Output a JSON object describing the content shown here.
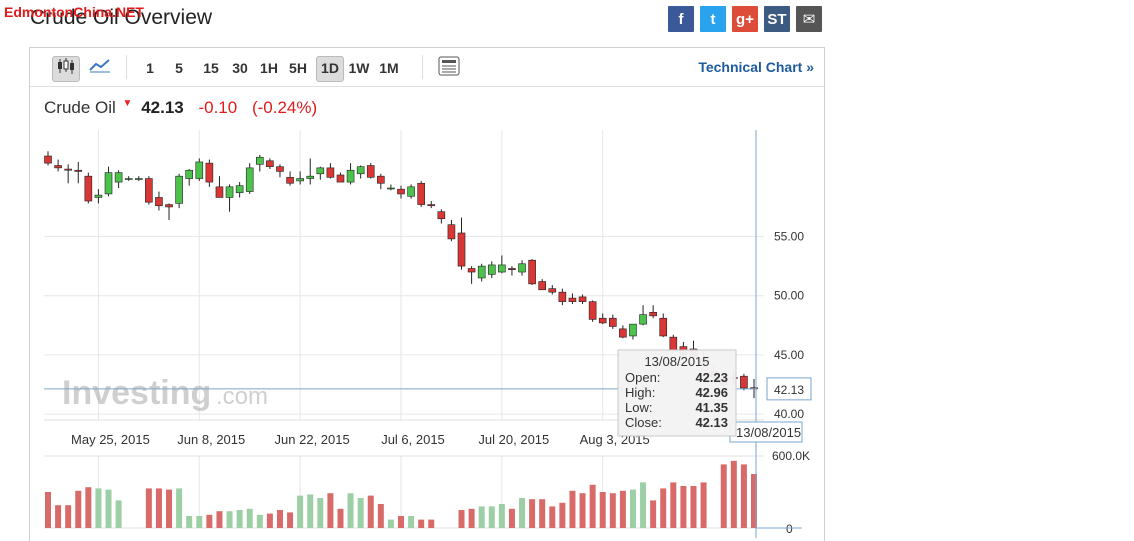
{
  "watermark": "EdmontonChina.NET",
  "page_title": "Crude Oil Overview",
  "share": [
    {
      "icon": "facebook-icon",
      "glyph": "f",
      "color": "#3b5998"
    },
    {
      "icon": "twitter-icon",
      "glyph": "t",
      "color": "#2aa3ef"
    },
    {
      "icon": "google-plus-icon",
      "glyph": "g+",
      "color": "#dd4b39"
    },
    {
      "icon": "stocktwits-icon",
      "glyph": "ST",
      "color": "#3d5a80"
    },
    {
      "icon": "email-icon",
      "glyph": "✉",
      "color": "#555555"
    }
  ],
  "toolbar": {
    "timeframes": [
      "1",
      "5",
      "15",
      "30",
      "1H",
      "5H",
      "1D",
      "1W",
      "1M"
    ],
    "active_timeframe": "1D",
    "technical_chart_label": "Technical Chart »"
  },
  "quote": {
    "name": "Crude Oil",
    "price": "42.13",
    "change": "-0.10",
    "change_pct": "(-0.24%)"
  },
  "colors": {
    "up": "#4cc24c",
    "down": "#d93636",
    "up_volume": "#9dcfa6",
    "down_volume": "#d96a6a",
    "crosshair": "#7aa6cf"
  },
  "chart_data": {
    "type": "candlestick",
    "price_axis": {
      "ylim": [
        39.5,
        64
      ],
      "ticks": [
        "55.00",
        "50.00",
        "45.00",
        "40.00"
      ],
      "current_price_label": "42.13"
    },
    "x_tick_labels": [
      "May 25, 2015",
      "Jun 8, 2015",
      "Jun 22, 2015",
      "Jul 6, 2015",
      "Jul 20, 2015",
      "Aug 3, 2015"
    ],
    "candles": [
      {
        "o": 61.8,
        "h": 62.2,
        "l": 61.0,
        "c": 61.2
      },
      {
        "o": 61.0,
        "h": 61.5,
        "l": 60.5,
        "c": 60.8
      },
      {
        "o": 60.7,
        "h": 61.1,
        "l": 59.5,
        "c": 60.6
      },
      {
        "o": 60.6,
        "h": 61.3,
        "l": 59.5,
        "c": 60.5
      },
      {
        "o": 60.1,
        "h": 60.4,
        "l": 57.8,
        "c": 58.0
      },
      {
        "o": 58.3,
        "h": 59.0,
        "l": 57.8,
        "c": 58.5
      },
      {
        "o": 58.6,
        "h": 60.9,
        "l": 58.4,
        "c": 60.4
      },
      {
        "o": 59.6,
        "h": 60.6,
        "l": 59.1,
        "c": 60.4
      },
      {
        "o": 59.9,
        "h": 60.1,
        "l": 59.7,
        "c": 59.9
      },
      {
        "o": 59.9,
        "h": 60.1,
        "l": 59.7,
        "c": 59.9
      },
      {
        "o": 59.9,
        "h": 60.1,
        "l": 57.7,
        "c": 57.9
      },
      {
        "o": 58.3,
        "h": 58.8,
        "l": 57.2,
        "c": 57.6
      },
      {
        "o": 57.7,
        "h": 57.8,
        "l": 56.4,
        "c": 57.5
      },
      {
        "o": 57.8,
        "h": 60.3,
        "l": 57.4,
        "c": 60.1
      },
      {
        "o": 59.9,
        "h": 60.7,
        "l": 59.3,
        "c": 60.6
      },
      {
        "o": 59.9,
        "h": 61.6,
        "l": 59.7,
        "c": 61.3
      },
      {
        "o": 61.2,
        "h": 61.5,
        "l": 59.2,
        "c": 59.6
      },
      {
        "o": 59.2,
        "h": 60.1,
        "l": 58.3,
        "c": 58.3
      },
      {
        "o": 58.3,
        "h": 59.4,
        "l": 57.1,
        "c": 59.2
      },
      {
        "o": 58.7,
        "h": 59.6,
        "l": 58.3,
        "c": 59.3
      },
      {
        "o": 58.8,
        "h": 61.2,
        "l": 58.6,
        "c": 60.8
      },
      {
        "o": 61.1,
        "h": 61.9,
        "l": 60.5,
        "c": 61.7
      },
      {
        "o": 61.4,
        "h": 61.6,
        "l": 60.7,
        "c": 60.9
      },
      {
        "o": 60.9,
        "h": 61.1,
        "l": 60.0,
        "c": 60.5
      },
      {
        "o": 60.0,
        "h": 60.5,
        "l": 59.3,
        "c": 59.5
      },
      {
        "o": 59.7,
        "h": 60.5,
        "l": 59.4,
        "c": 59.9
      },
      {
        "o": 59.9,
        "h": 61.6,
        "l": 59.4,
        "c": 60.1
      },
      {
        "o": 60.3,
        "h": 60.9,
        "l": 59.8,
        "c": 60.8
      },
      {
        "o": 60.8,
        "h": 61.2,
        "l": 59.9,
        "c": 60.0
      },
      {
        "o": 60.2,
        "h": 60.4,
        "l": 59.6,
        "c": 59.6
      },
      {
        "o": 59.6,
        "h": 61.2,
        "l": 59.4,
        "c": 60.6
      },
      {
        "o": 60.3,
        "h": 61.0,
        "l": 59.9,
        "c": 60.9
      },
      {
        "o": 61.0,
        "h": 61.2,
        "l": 59.9,
        "c": 60.0
      },
      {
        "o": 60.1,
        "h": 60.3,
        "l": 59.0,
        "c": 59.5
      },
      {
        "o": 59.1,
        "h": 59.4,
        "l": 58.9,
        "c": 59.1
      },
      {
        "o": 59.0,
        "h": 59.3,
        "l": 58.2,
        "c": 58.6
      },
      {
        "o": 58.4,
        "h": 59.4,
        "l": 58.2,
        "c": 59.2
      },
      {
        "o": 59.5,
        "h": 59.7,
        "l": 57.5,
        "c": 57.7
      },
      {
        "o": 57.7,
        "h": 58.0,
        "l": 57.4,
        "c": 57.6
      },
      {
        "o": 57.1,
        "h": 57.3,
        "l": 56.1,
        "c": 56.5
      },
      {
        "o": 56.0,
        "h": 56.4,
        "l": 54.6,
        "c": 54.8
      },
      {
        "o": 55.3,
        "h": 56.6,
        "l": 52.2,
        "c": 52.5
      },
      {
        "o": 52.3,
        "h": 52.5,
        "l": 51.0,
        "c": 52.0
      },
      {
        "o": 51.5,
        "h": 52.7,
        "l": 51.2,
        "c": 52.5
      },
      {
        "o": 51.8,
        "h": 52.9,
        "l": 51.5,
        "c": 52.6
      },
      {
        "o": 52.0,
        "h": 53.4,
        "l": 51.9,
        "c": 52.6
      },
      {
        "o": 52.3,
        "h": 52.5,
        "l": 51.7,
        "c": 52.2
      },
      {
        "o": 52.0,
        "h": 53.0,
        "l": 51.7,
        "c": 52.7
      },
      {
        "o": 53.0,
        "h": 53.1,
        "l": 50.9,
        "c": 51.0
      },
      {
        "o": 51.2,
        "h": 51.4,
        "l": 50.5,
        "c": 50.5
      },
      {
        "o": 50.6,
        "h": 50.9,
        "l": 50.1,
        "c": 50.3
      },
      {
        "o": 50.3,
        "h": 50.6,
        "l": 49.2,
        "c": 49.5
      },
      {
        "o": 49.8,
        "h": 50.2,
        "l": 49.3,
        "c": 49.5
      },
      {
        "o": 49.9,
        "h": 50.1,
        "l": 49.3,
        "c": 49.5
      },
      {
        "o": 49.5,
        "h": 49.6,
        "l": 47.8,
        "c": 48.0
      },
      {
        "o": 48.1,
        "h": 48.5,
        "l": 47.6,
        "c": 47.7
      },
      {
        "o": 48.1,
        "h": 48.4,
        "l": 47.2,
        "c": 47.4
      },
      {
        "o": 47.2,
        "h": 47.5,
        "l": 46.4,
        "c": 46.5
      },
      {
        "o": 46.6,
        "h": 47.6,
        "l": 46.3,
        "c": 47.6
      },
      {
        "o": 47.6,
        "h": 49.2,
        "l": 47.5,
        "c": 48.4
      },
      {
        "o": 48.6,
        "h": 49.2,
        "l": 48.1,
        "c": 48.3
      },
      {
        "o": 48.1,
        "h": 48.5,
        "l": 46.5,
        "c": 46.6
      },
      {
        "o": 46.5,
        "h": 46.7,
        "l": 45.2,
        "c": 45.4
      },
      {
        "o": 45.7,
        "h": 46.1,
        "l": 44.8,
        "c": 45.0
      },
      {
        "o": 45.5,
        "h": 46.2,
        "l": 44.6,
        "c": 44.8
      },
      {
        "o": 44.8,
        "h": 45.3,
        "l": 43.9,
        "c": 44.1
      },
      {
        "o": 43.6,
        "h": 44.2,
        "l": 42.9,
        "c": 43.1
      },
      {
        "o": 43.0,
        "h": 43.5,
        "l": 42.3,
        "c": 42.5
      },
      {
        "o": 43.1,
        "h": 43.6,
        "l": 42.5,
        "c": 43.0
      },
      {
        "o": 43.2,
        "h": 43.4,
        "l": 42.0,
        "c": 42.2
      },
      {
        "o": 42.23,
        "h": 42.96,
        "l": 41.35,
        "c": 42.13
      }
    ],
    "volume_axis": {
      "ticks": [
        "600.0K",
        "0"
      ],
      "ylim": [
        0,
        600000
      ]
    },
    "volume": [
      300000,
      190000,
      190000,
      310000,
      340000,
      330000,
      320000,
      230000,
      0,
      0,
      330000,
      330000,
      320000,
      330000,
      100000,
      100000,
      110000,
      140000,
      140000,
      150000,
      160000,
      110000,
      120000,
      150000,
      130000,
      270000,
      280000,
      250000,
      290000,
      160000,
      290000,
      250000,
      270000,
      200000,
      70000,
      100000,
      100000,
      70000,
      70000,
      0,
      0,
      150000,
      160000,
      180000,
      180000,
      200000,
      160000,
      250000,
      240000,
      240000,
      180000,
      210000,
      310000,
      290000,
      360000,
      300000,
      290000,
      310000,
      320000,
      380000,
      230000,
      330000,
      380000,
      350000,
      350000,
      380000,
      0,
      530000,
      560000,
      530000,
      450000
    ],
    "tooltip": {
      "date": "13/08/2015",
      "open_label": "Open:",
      "open": "42.23",
      "high_label": "High:",
      "high": "42.96",
      "low_label": "Low:",
      "low": "41.35",
      "close_label": "Close:",
      "close": "42.13"
    },
    "crosshair_date_label": "13/08/2015",
    "watermark_logo": "Investing.com"
  }
}
